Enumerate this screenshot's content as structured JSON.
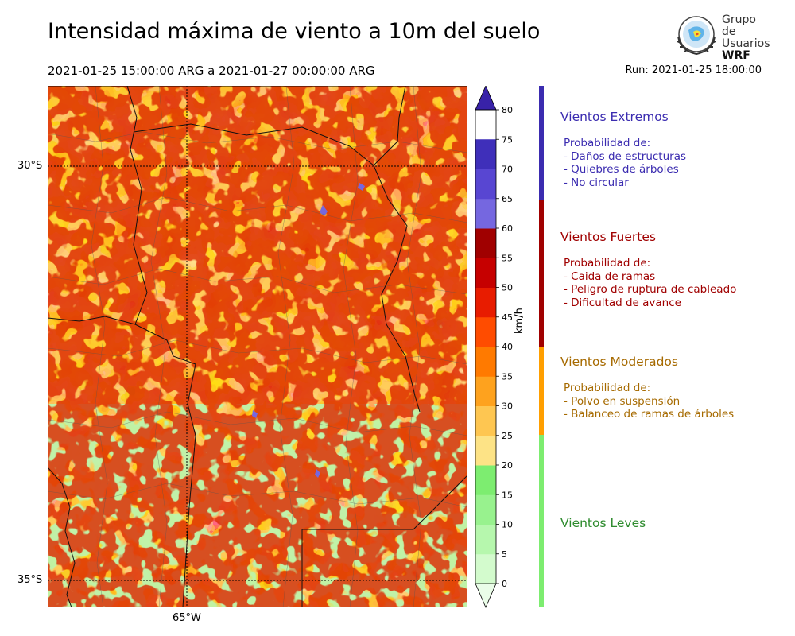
{
  "title": "Intensidad máxima de viento a 10m del suelo",
  "period": "2021-01-25 15:00:00 ARG  a  2021-01-27 00:00:00 ARG",
  "run": "Run: 2021-01-25 18:00:00",
  "logo": {
    "line1": "Grupo de",
    "line2": "Usuarios",
    "line3": "WRF"
  },
  "map": {
    "lat_labels": [
      "30°S",
      "35°S"
    ],
    "lon_labels": [
      "65°W"
    ]
  },
  "colorbar": {
    "unit": "km/h",
    "ticks": [
      "0",
      "5",
      "10",
      "15",
      "20",
      "25",
      "30",
      "35",
      "40",
      "45",
      "50",
      "55",
      "60",
      "65",
      "70",
      "75",
      "80"
    ],
    "colors": [
      "#eafde8",
      "#d3fbcd",
      "#b6f7ad",
      "#98f28e",
      "#7ded70",
      "#fde386",
      "#fec651",
      "#fea21e",
      "#ff7a00",
      "#ff4c00",
      "#e81c00",
      "#c60000",
      "#a00000",
      "#7567e0",
      "#5846d2",
      "#3f2fba",
      "#3822a8"
    ]
  },
  "categories": [
    {
      "name": "Vientos Extremos",
      "color": "#3b2cb0",
      "desc_title": "Probabilidad de:",
      "items": [
        "- Daños de estructuras",
        "- Quiebres de árboles",
        "- No circular"
      ]
    },
    {
      "name": "Vientos Fuertes",
      "color": "#a00000",
      "desc_title": "Probabilidad de:",
      "items": [
        "- Caida de ramas",
        "- Peligro de ruptura de cableado",
        "- Dificultad de avance"
      ]
    },
    {
      "name": "Vientos Moderados",
      "color": "#a66a00",
      "desc_title": "Probabilidad de:",
      "items": [
        "- Polvo en suspensión",
        "- Balanceo de ramas de árboles"
      ]
    },
    {
      "name": "Vientos Leves",
      "color": "#2e8b2e"
    }
  ],
  "legend_colors": {
    "extremos": "#3b2cb0",
    "fuertes": "#a00000",
    "moderados": "#ff9f00",
    "leves": "#7ded70"
  }
}
